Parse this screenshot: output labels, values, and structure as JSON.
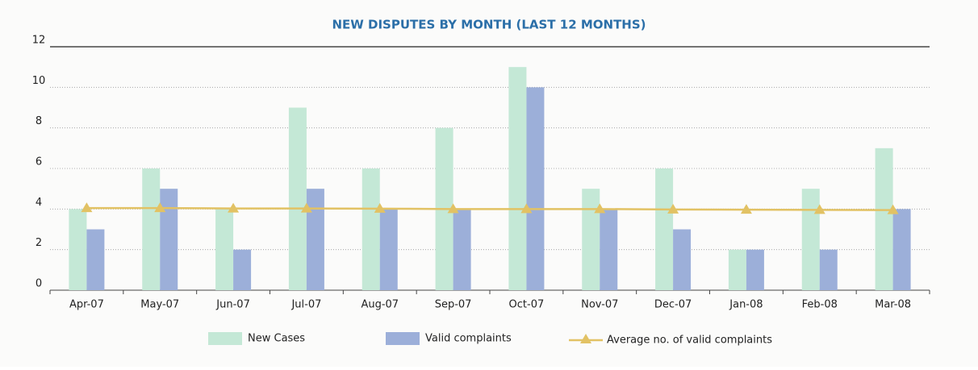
{
  "chart_data": {
    "type": "bar",
    "title": "NEW DISPUTES BY MONTH (LAST 12 MONTHS)",
    "categories": [
      "Apr-07",
      "May-07",
      "Jun-07",
      "Jul-07",
      "Aug-07",
      "Sep-07",
      "Oct-07",
      "Nov-07",
      "Dec-07",
      "Jan-08",
      "Feb-08",
      "Mar-08"
    ],
    "series": [
      {
        "name": "New Cases",
        "type": "bar",
        "color": "#c4e8d6",
        "values": [
          4,
          6,
          4,
          9,
          6,
          8,
          11,
          5,
          6,
          2,
          5,
          7
        ]
      },
      {
        "name": "Valid complaints",
        "type": "bar",
        "color": "#9cafd9",
        "values": [
          3,
          5,
          2,
          5,
          4,
          4,
          10,
          4,
          3,
          2,
          2,
          4
        ]
      },
      {
        "name": "Average no. of valid complaints",
        "type": "line",
        "color": "#e2c264",
        "values": [
          4.05,
          4.05,
          4.03,
          4.03,
          4.02,
          4.0,
          4.0,
          4.0,
          3.98,
          3.97,
          3.96,
          3.95
        ]
      }
    ],
    "ylim": [
      0,
      12
    ],
    "yticks": [
      0,
      2,
      4,
      6,
      8,
      10,
      12
    ],
    "grid": true,
    "legend": "bottom"
  }
}
